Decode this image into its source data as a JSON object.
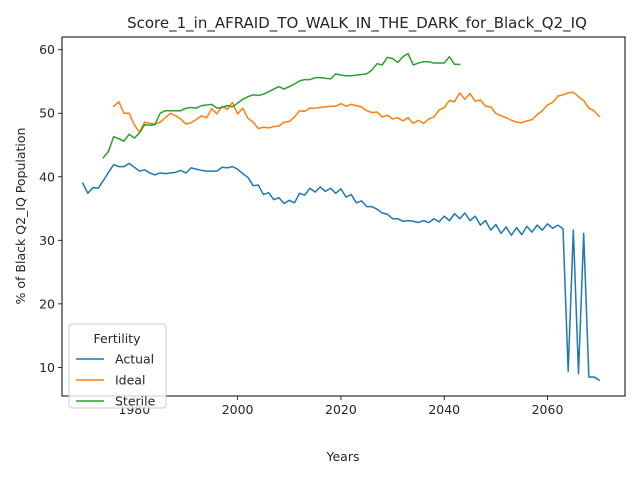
{
  "chart_data": {
    "type": "line",
    "title": "Score_1_in_AFRAID_TO_WALK_IN_THE_DARK_for_Black_Q2_IQ",
    "xlabel": "Years",
    "ylabel": "% of Black Q2_IQ Population",
    "xlim": [
      1966,
      2075
    ],
    "ylim": [
      5.5,
      62
    ],
    "xticks": [
      1980,
      2000,
      2020,
      2040,
      2060
    ],
    "yticks": [
      10,
      20,
      30,
      40,
      50,
      60
    ],
    "grid": false,
    "legend": {
      "title": "Fertility",
      "placement": "lower-left"
    },
    "series": [
      {
        "name": "Actual",
        "color": "#1f77b4",
        "x": [
          1970,
          1971,
          1972,
          1973,
          1974,
          1975,
          1976,
          1977,
          1978,
          1979,
          1980,
          1981,
          1982,
          1983,
          1984,
          1985,
          1986,
          1987,
          1988,
          1989,
          1990,
          1991,
          1992,
          1993,
          1994,
          1995,
          1996,
          1997,
          1998,
          1999,
          2000,
          2001,
          2002,
          2003,
          2004,
          2005,
          2006,
          2007,
          2008,
          2009,
          2010,
          2011,
          2012,
          2013,
          2014,
          2015,
          2016,
          2017,
          2018,
          2019,
          2020,
          2021,
          2022,
          2023,
          2024,
          2025,
          2026,
          2027,
          2028,
          2029,
          2030,
          2031,
          2032,
          2033,
          2034,
          2035,
          2036,
          2037,
          2038,
          2039,
          2040,
          2041,
          2042,
          2043,
          2044,
          2045,
          2046,
          2047,
          2048,
          2049,
          2050,
          2051,
          2052,
          2053,
          2054,
          2055,
          2056,
          2057,
          2058,
          2059,
          2060,
          2061,
          2062,
          2063,
          2064,
          2065,
          2066,
          2067,
          2068,
          2069,
          2070
        ],
        "values": [
          39.0,
          37.4,
          38.3,
          38.2,
          39.4,
          40.7,
          41.9,
          41.6,
          41.6,
          42.1,
          41.5,
          40.9,
          41.1,
          40.6,
          40.3,
          40.6,
          40.5,
          40.6,
          40.7,
          41.0,
          40.6,
          41.4,
          41.2,
          41.0,
          40.9,
          40.9,
          40.9,
          41.5,
          41.4,
          41.6,
          41.2,
          40.5,
          39.9,
          38.6,
          38.7,
          37.2,
          37.5,
          36.4,
          36.7,
          35.8,
          36.3,
          35.9,
          37.4,
          37.1,
          38.2,
          37.6,
          38.4,
          37.7,
          38.2,
          37.4,
          38.1,
          36.8,
          37.2,
          35.9,
          36.2,
          35.3,
          35.3,
          34.9,
          34.3,
          34.1,
          33.4,
          33.4,
          33.0,
          33.1,
          33.0,
          32.8,
          33.1,
          32.8,
          33.4,
          32.9,
          33.8,
          33.1,
          34.2,
          33.4,
          34.3,
          33.1,
          33.8,
          32.4,
          33.1,
          31.6,
          32.5,
          31.1,
          32.1,
          30.8,
          32.0,
          30.9,
          32.2,
          31.3,
          32.4,
          31.6,
          32.6,
          31.9,
          32.4,
          31.8,
          9.4,
          31.6,
          9.0,
          31.1,
          8.5,
          8.5,
          8.0
        ]
      },
      {
        "name": "Ideal",
        "color": "#ff7f0e",
        "x": [
          1976,
          1977,
          1978,
          1979,
          1980,
          1981,
          1982,
          1983,
          1984,
          1985,
          1986,
          1987,
          1988,
          1989,
          1990,
          1991,
          1992,
          1993,
          1994,
          1995,
          1996,
          1997,
          1998,
          1999,
          2000,
          2001,
          2002,
          2003,
          2004,
          2005,
          2006,
          2007,
          2008,
          2009,
          2010,
          2011,
          2012,
          2013,
          2014,
          2015,
          2016,
          2017,
          2018,
          2019,
          2020,
          2021,
          2022,
          2023,
          2024,
          2025,
          2026,
          2027,
          2028,
          2029,
          2030,
          2031,
          2032,
          2033,
          2034,
          2035,
          2036,
          2037,
          2038,
          2039,
          2040,
          2041,
          2042,
          2043,
          2044,
          2045,
          2046,
          2047,
          2048,
          2049,
          2050,
          2051,
          2052,
          2053,
          2054,
          2055,
          2056,
          2057,
          2058,
          2059,
          2060,
          2061,
          2062,
          2063,
          2064,
          2065,
          2066,
          2067,
          2068,
          2069,
          2070
        ],
        "values": [
          51.1,
          51.8,
          50.0,
          50.0,
          48.2,
          47.0,
          48.6,
          48.4,
          48.3,
          48.6,
          49.3,
          50.0,
          49.6,
          49.1,
          48.3,
          48.5,
          49.0,
          49.6,
          49.3,
          50.7,
          49.9,
          51.1,
          50.6,
          51.7,
          49.9,
          50.8,
          49.2,
          48.6,
          47.6,
          47.8,
          47.7,
          47.9,
          48.0,
          48.6,
          48.7,
          49.4,
          50.4,
          50.3,
          50.8,
          50.8,
          50.9,
          51.0,
          51.1,
          51.1,
          51.5,
          51.1,
          51.4,
          51.2,
          51.0,
          50.4,
          50.1,
          50.2,
          49.4,
          49.7,
          49.1,
          49.3,
          48.8,
          49.3,
          48.4,
          48.9,
          48.4,
          49.1,
          49.4,
          50.5,
          50.9,
          52.0,
          51.8,
          53.2,
          52.2,
          53.1,
          51.9,
          52.1,
          51.1,
          51.0,
          50.0,
          49.6,
          49.3,
          48.9,
          48.6,
          48.5,
          48.8,
          49.0,
          49.8,
          50.4,
          51.3,
          51.7,
          52.7,
          52.9,
          53.2,
          53.3,
          52.6,
          52.0,
          50.8,
          50.4,
          49.5
        ]
      },
      {
        "name": "Sterile",
        "color": "#2ca02c",
        "x": [
          1974,
          1975,
          1976,
          1977,
          1978,
          1979,
          1980,
          1981,
          1982,
          1983,
          1984,
          1985,
          1986,
          1987,
          1988,
          1989,
          1990,
          1991,
          1992,
          1993,
          1994,
          1995,
          1996,
          1997,
          1998,
          1999,
          2000,
          2001,
          2002,
          2003,
          2004,
          2005,
          2006,
          2007,
          2008,
          2009,
          2010,
          2011,
          2012,
          2013,
          2014,
          2015,
          2016,
          2017,
          2018,
          2019,
          2020,
          2021,
          2022,
          2023,
          2024,
          2025,
          2026,
          2027,
          2028,
          2029,
          2030,
          2031,
          2032,
          2033,
          2034,
          2035,
          2036,
          2037,
          2038,
          2039,
          2040,
          2041,
          2042,
          2043
        ],
        "values": [
          43.0,
          44.0,
          46.3,
          46.0,
          45.6,
          46.7,
          46.1,
          46.9,
          48.2,
          48.1,
          48.2,
          50.0,
          50.4,
          50.4,
          50.4,
          50.4,
          50.8,
          50.9,
          50.8,
          51.2,
          51.3,
          51.4,
          50.8,
          50.9,
          51.2,
          51.0,
          51.6,
          52.2,
          52.6,
          52.9,
          52.8,
          53.0,
          53.4,
          53.8,
          54.2,
          53.8,
          54.2,
          54.6,
          55.1,
          55.3,
          55.3,
          55.6,
          55.6,
          55.5,
          55.4,
          56.2,
          56.0,
          55.9,
          55.9,
          56.0,
          56.1,
          56.2,
          56.8,
          57.8,
          57.6,
          58.8,
          58.6,
          58.0,
          58.9,
          59.4,
          57.6,
          57.9,
          58.1,
          58.1,
          57.9,
          57.9,
          57.9,
          58.9,
          57.7,
          57.7
        ]
      }
    ]
  }
}
